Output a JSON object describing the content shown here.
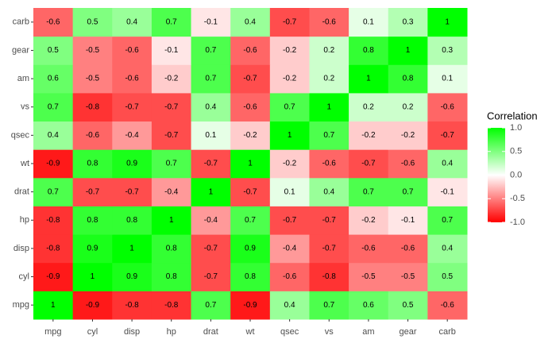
{
  "chart_data": {
    "type": "heatmap",
    "categories": [
      "mpg",
      "cyl",
      "disp",
      "hp",
      "drat",
      "wt",
      "qsec",
      "vs",
      "am",
      "gear",
      "carb"
    ],
    "y_categories": [
      "mpg",
      "cyl",
      "disp",
      "hp",
      "drat",
      "wt",
      "qsec",
      "vs",
      "am",
      "gear",
      "carb"
    ],
    "values": [
      [
        1,
        -0.9,
        -0.8,
        -0.8,
        0.7,
        -0.9,
        0.4,
        0.7,
        0.6,
        0.5,
        -0.6
      ],
      [
        -0.9,
        1,
        0.9,
        0.8,
        -0.7,
        0.8,
        -0.6,
        -0.8,
        -0.5,
        -0.5,
        0.5
      ],
      [
        -0.8,
        0.9,
        1,
        0.8,
        -0.7,
        0.9,
        -0.4,
        -0.7,
        -0.6,
        -0.6,
        0.4
      ],
      [
        -0.8,
        0.8,
        0.8,
        1,
        -0.4,
        0.7,
        -0.7,
        -0.7,
        -0.2,
        -0.1,
        0.7
      ],
      [
        0.7,
        -0.7,
        -0.7,
        -0.4,
        1,
        -0.7,
        0.1,
        0.4,
        0.7,
        0.7,
        -0.1
      ],
      [
        -0.9,
        0.8,
        0.9,
        0.7,
        -0.7,
        1,
        -0.2,
        -0.6,
        -0.7,
        -0.6,
        0.4
      ],
      [
        0.4,
        -0.6,
        -0.4,
        -0.7,
        0.1,
        -0.2,
        1,
        0.7,
        -0.2,
        -0.2,
        -0.7
      ],
      [
        0.7,
        -0.8,
        -0.7,
        -0.7,
        0.4,
        -0.6,
        0.7,
        1,
        0.2,
        0.2,
        -0.6
      ],
      [
        0.6,
        -0.5,
        -0.6,
        -0.2,
        0.7,
        -0.7,
        -0.2,
        0.2,
        1,
        0.8,
        0.1
      ],
      [
        0.5,
        -0.5,
        -0.6,
        -0.1,
        0.7,
        -0.6,
        -0.2,
        0.2,
        0.8,
        1,
        0.3
      ],
      [
        -0.6,
        0.5,
        0.4,
        0.7,
        -0.1,
        0.4,
        -0.7,
        -0.6,
        0.1,
        0.3,
        1
      ]
    ],
    "legend_title": "Correlation",
    "colorlim": [
      -1,
      1
    ],
    "colorticks": [
      {
        "value": -1,
        "label": "-1.0"
      },
      {
        "value": -0.5,
        "label": "-0.5"
      },
      {
        "value": 0,
        "label": "0.0"
      },
      {
        "value": 0.5,
        "label": "0.5"
      },
      {
        "value": 1,
        "label": "1.0"
      }
    ],
    "colors": {
      "low": "#ff0000",
      "mid": "#ffffff",
      "high": "#00ff00"
    }
  }
}
